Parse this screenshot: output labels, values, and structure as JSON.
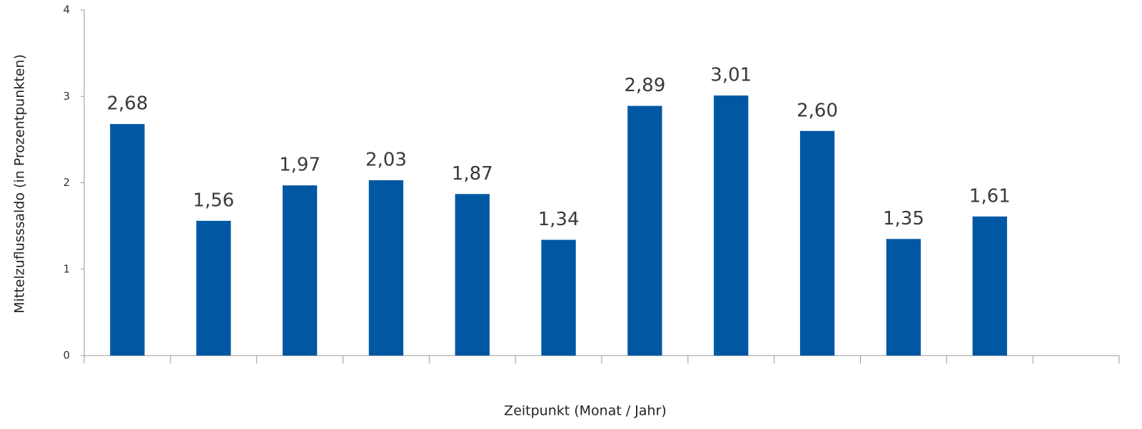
{
  "chart_data": {
    "type": "bar",
    "x_label": "Zeitpunkt (Monat / Jahr)",
    "y_label": "Mittelzufluss­saldo (in Prozentpunkten)",
    "categories": [
      null,
      null,
      null,
      null,
      null,
      null,
      null,
      null,
      null,
      null,
      null,
      null
    ],
    "values": [
      2.68,
      1.56,
      1.97,
      2.03,
      1.87,
      1.34,
      2.89,
      3.01,
      2.6,
      1.35,
      1.61,
      null
    ],
    "value_labels": [
      "2,68",
      "1,56",
      "1,97",
      "2,03",
      "1,87",
      "1,34",
      "2,89",
      "3,01",
      "2,60",
      "1,35",
      "1,61",
      null
    ],
    "color": "#0058a3",
    "ylim": [
      0,
      4
    ],
    "yticks": [
      0,
      1,
      2,
      3,
      4
    ],
    "grid": false
  }
}
